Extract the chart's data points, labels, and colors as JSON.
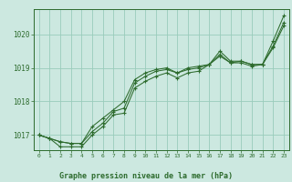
{
  "title": "Graphe pression niveau de la mer (hPa)",
  "bg_color": "#cce8e0",
  "grid_color": "#99ccbb",
  "line_color": "#2d6b2d",
  "marker_color": "#2d6b2d",
  "xlim": [
    -0.5,
    23.5
  ],
  "ylim": [
    1016.55,
    1020.75
  ],
  "yticks": [
    1017,
    1018,
    1019,
    1020
  ],
  "xticks": [
    0,
    1,
    2,
    3,
    4,
    5,
    6,
    7,
    8,
    9,
    10,
    11,
    12,
    13,
    14,
    15,
    16,
    17,
    18,
    19,
    20,
    21,
    22,
    23
  ],
  "series": [
    [
      1017.0,
      1016.9,
      1016.8,
      1016.75,
      1016.75,
      1017.25,
      1017.5,
      1017.75,
      1018.0,
      1018.65,
      1018.85,
      1018.95,
      1019.0,
      1018.85,
      1019.0,
      1019.05,
      1019.1,
      1019.5,
      1019.2,
      1019.2,
      1019.1,
      1019.1,
      1019.8,
      1020.55
    ],
    [
      1017.0,
      1016.9,
      1016.8,
      1016.75,
      1016.75,
      1017.1,
      1017.35,
      1017.7,
      1017.8,
      1018.55,
      1018.75,
      1018.9,
      1018.95,
      1018.85,
      1018.95,
      1019.0,
      1019.1,
      1019.4,
      1019.15,
      1019.2,
      1019.1,
      1019.1,
      1019.65,
      1020.35
    ],
    [
      1017.0,
      1016.9,
      1016.65,
      1016.65,
      1016.65,
      1017.0,
      1017.25,
      1017.6,
      1017.65,
      1018.4,
      1018.6,
      1018.75,
      1018.85,
      1018.7,
      1018.85,
      1018.9,
      1019.1,
      1019.35,
      1019.15,
      1019.15,
      1019.05,
      1019.1,
      1019.6,
      1020.25
    ]
  ]
}
